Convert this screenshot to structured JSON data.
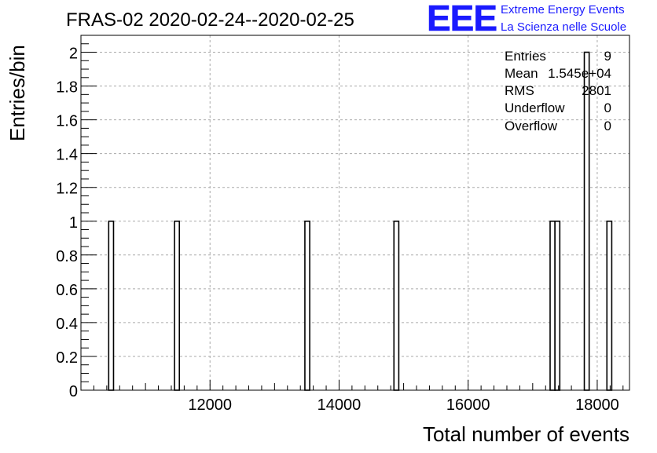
{
  "header": {
    "title": "FRAS-02 2020-02-24--2020-02-25",
    "logo_text": "EEE",
    "logo_line1": "Extreme Energy Events",
    "logo_line2": "La Scienza nelle Scuole",
    "logo_color": "#1a1aff"
  },
  "stats": {
    "entries_label": "Entries",
    "entries_value": "9",
    "mean_label": "Mean",
    "mean_value": "1.545e+04",
    "rms_label": "RMS",
    "rms_value": "2801",
    "underflow_label": "Underflow",
    "underflow_value": "0",
    "overflow_label": "Overflow",
    "overflow_value": "0"
  },
  "chart_data": {
    "type": "bar",
    "xlabel": "Total number of events",
    "ylabel": "Entries/bin",
    "xlim": [
      10000,
      18500
    ],
    "ylim": [
      0,
      2.1
    ],
    "bin_width": 75,
    "grid": true,
    "x_ticks": [
      12000,
      14000,
      16000,
      18000
    ],
    "x_tick_labels": [
      "12000",
      "14000",
      "16000",
      "18000"
    ],
    "y_ticks": [
      0,
      0.2,
      0.4,
      0.6,
      0.8,
      1,
      1.2,
      1.4,
      1.6,
      1.8,
      2
    ],
    "y_tick_labels": [
      "0",
      "0.2",
      "0.4",
      "0.6",
      "0.8",
      "1",
      "1.2",
      "1.4",
      "1.6",
      "1.8",
      "2"
    ],
    "bins": [
      {
        "x": 10430,
        "value": 1
      },
      {
        "x": 11450,
        "value": 1
      },
      {
        "x": 13470,
        "value": 1
      },
      {
        "x": 14850,
        "value": 1
      },
      {
        "x": 17270,
        "value": 1
      },
      {
        "x": 17345,
        "value": 1
      },
      {
        "x": 17800,
        "value": 2
      },
      {
        "x": 18150,
        "value": 1
      }
    ]
  }
}
